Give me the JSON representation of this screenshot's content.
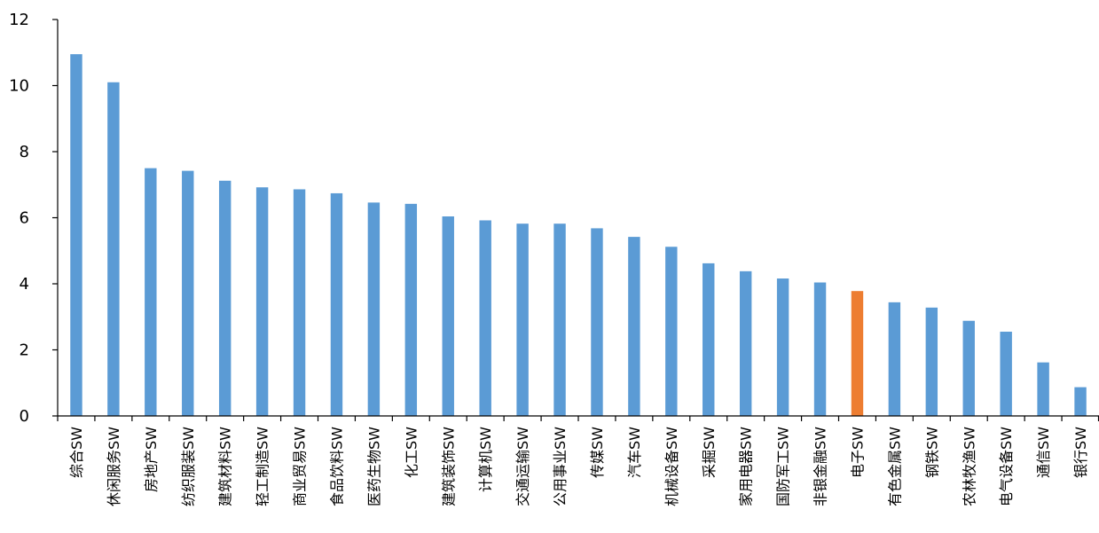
{
  "chart_data": {
    "type": "bar",
    "title": "",
    "xlabel": "",
    "ylabel": "",
    "ylim": [
      0,
      12
    ],
    "yticks": [
      "0",
      "2",
      "4",
      "6",
      "8",
      "10",
      "12"
    ],
    "grid": false,
    "colors": {
      "default": "#5b9bd5",
      "highlight": "#ed7d31"
    },
    "highlight_category": "电子SW",
    "categories": [
      "综合SW",
      "休闲服务SW",
      "房地产SW",
      "纺织服装SW",
      "建筑材料SW",
      "轻工制造SW",
      "商业贸易SW",
      "食品饮料SW",
      "医药生物SW",
      "化工SW",
      "建筑装饰SW",
      "计算机SW",
      "交通运输SW",
      "公用事业SW",
      "传媒SW",
      "汽车SW",
      "机械设备SW",
      "采掘SW",
      "家用电器SW",
      "国防军工SW",
      "非银金融SW",
      "电子SW",
      "有色金属SW",
      "钢铁SW",
      "农林牧渔SW",
      "电气设备SW",
      "通信SW",
      "银行SW"
    ],
    "values": [
      10.95,
      10.1,
      7.5,
      7.42,
      7.12,
      6.92,
      6.86,
      6.74,
      6.46,
      6.42,
      6.04,
      5.92,
      5.82,
      5.82,
      5.68,
      5.42,
      5.12,
      4.62,
      4.38,
      4.16,
      4.04,
      3.78,
      3.44,
      3.28,
      2.88,
      2.55,
      1.62,
      0.87
    ]
  }
}
